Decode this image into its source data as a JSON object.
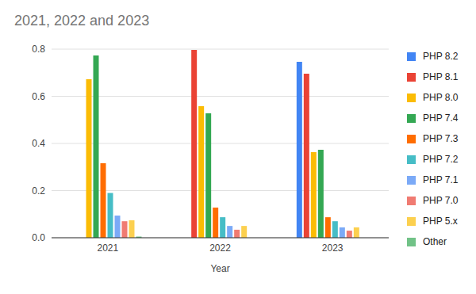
{
  "chart_data": {
    "type": "bar",
    "title": "2021, 2022 and 2023",
    "x_label": "Year",
    "categories": [
      "2021",
      "2022",
      "2023"
    ],
    "series": [
      {
        "name": "PHP 8.2",
        "color": "#4285f4",
        "values": [
          null,
          null,
          0.746
        ]
      },
      {
        "name": "PHP 8.1",
        "color": "#ea4335",
        "values": [
          null,
          0.797,
          0.696
        ]
      },
      {
        "name": "PHP 8.0",
        "color": "#fbbc04",
        "values": [
          0.672,
          0.558,
          0.363
        ]
      },
      {
        "name": "PHP 7.4",
        "color": "#34a853",
        "values": [
          0.773,
          0.528,
          0.373
        ]
      },
      {
        "name": "PHP 7.3",
        "color": "#ff6d01",
        "values": [
          0.316,
          0.128,
          0.087
        ]
      },
      {
        "name": "PHP 7.2",
        "color": "#46bdc6",
        "values": [
          0.19,
          0.087,
          0.07
        ]
      },
      {
        "name": "PHP 7.1",
        "color": "#7baaf7",
        "values": [
          0.094,
          0.05,
          0.044
        ]
      },
      {
        "name": "PHP 7.0",
        "color": "#f07b72",
        "values": [
          0.07,
          0.034,
          0.03
        ]
      },
      {
        "name": "PHP 5.x",
        "color": "#fcd04f",
        "values": [
          0.074,
          0.05,
          0.044
        ]
      },
      {
        "name": "Other",
        "color": "#71c287",
        "values": [
          0.005,
          0,
          0
        ]
      }
    ],
    "ylim": [
      0,
      0.8
    ],
    "yticks": [
      {
        "value": 0,
        "label": "0.0"
      },
      0.2,
      0.4,
      0.6,
      0.8
    ],
    "grid": true,
    "legend": "right"
  }
}
